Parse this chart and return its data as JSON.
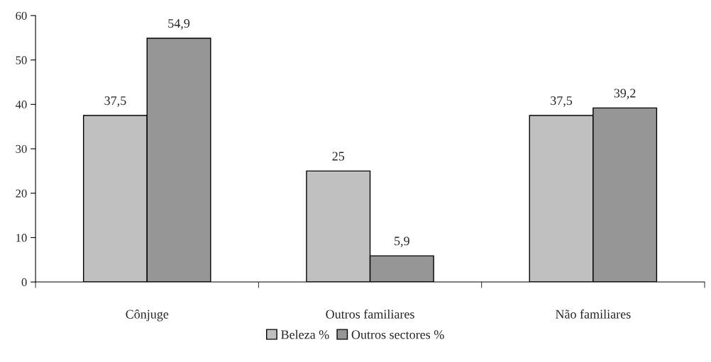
{
  "chart_data": {
    "type": "bar",
    "categories": [
      "Cônjuge",
      "Outros familiares",
      "Não familiares"
    ],
    "series": [
      {
        "name": "Beleza %",
        "color": "#c0c0c0",
        "values": [
          37.5,
          25,
          37.5
        ],
        "value_labels": [
          "37,5",
          "25",
          "37,5"
        ]
      },
      {
        "name": "Outros sectores %",
        "color": "#969696",
        "values": [
          54.9,
          5.9,
          39.2
        ],
        "value_labels": [
          "54,9",
          "5,9",
          "39,2"
        ]
      }
    ],
    "ylim": [
      0,
      60
    ],
    "yticks": [
      0,
      10,
      20,
      30,
      40,
      50,
      60
    ],
    "grid": false,
    "legend": "bottom"
  }
}
